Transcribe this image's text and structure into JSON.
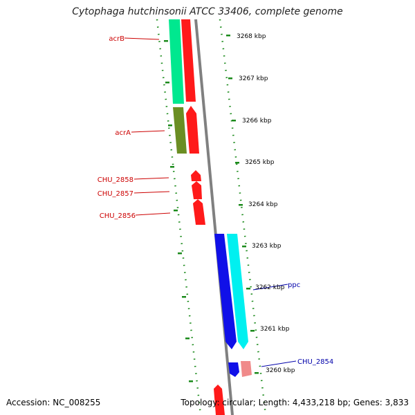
{
  "title": "Cytophaga hutchinsonii ATCC 33406, complete genome",
  "accession": "Accession: NC_008255",
  "topology": "Topology: circular; Length: 4,433,218 bp; Genes: 3,833",
  "kbp_labels": [
    "3268 kbp",
    "3267 kbp",
    "3266 kbp",
    "3265 kbp",
    "3264 kbp",
    "3263 kbp",
    "3262 kbp",
    "3261 kbp",
    "3260 kbp"
  ],
  "gene_labels": {
    "acrB": "acrB",
    "acrA": "acrA",
    "chu2858": "CHU_2858",
    "chu2857": "CHU_2857",
    "chu2856": "CHU_2856",
    "ppc": "ppc",
    "chu2854": "CHU_2854"
  },
  "colors": {
    "forward_gene": "#ff1a1a",
    "forward_gene_light": "#f08a8a",
    "cog_teal": "#00e88f",
    "cog_olive": "#6b8e23",
    "cog_blue": "#1010e8",
    "cog_cyan": "#00f0f0",
    "backbone": "#808080",
    "dots": "#1a8a1a",
    "label_red": "#cc0000",
    "label_blue": "#0000aa"
  }
}
